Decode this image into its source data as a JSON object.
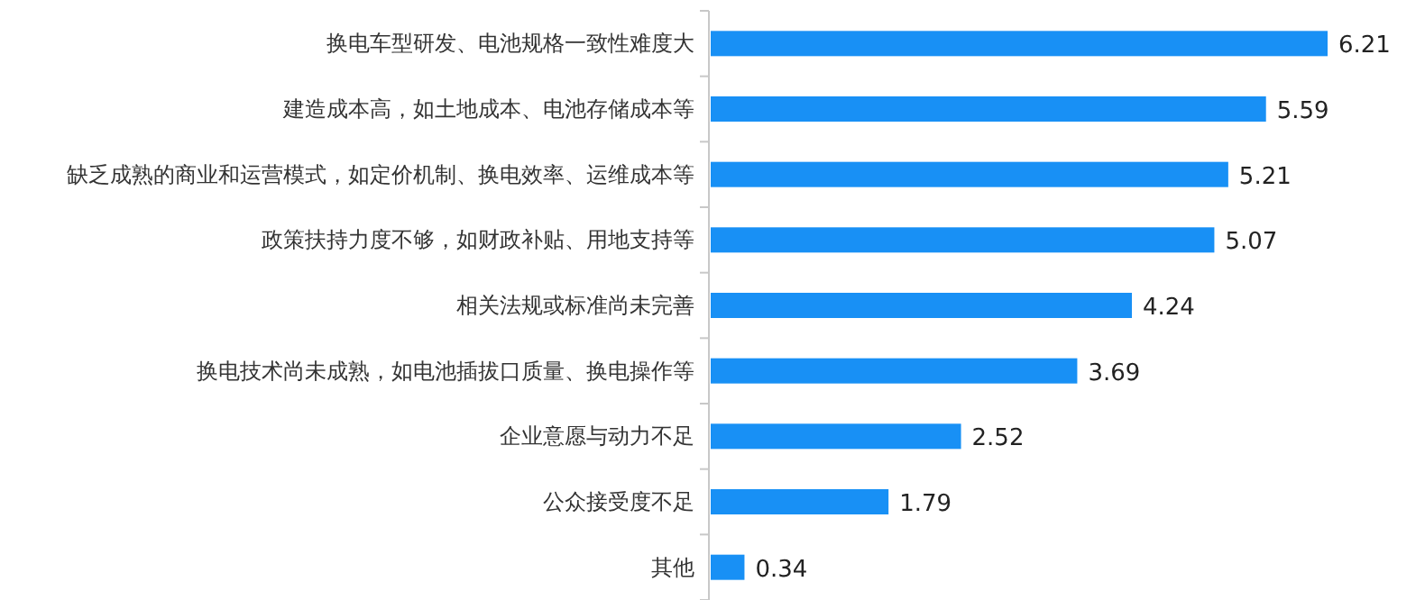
{
  "chart_data": {
    "type": "bar",
    "orientation": "horizontal",
    "data_labels": true,
    "color": "#1890f5",
    "categories": [
      "换电车型研发、电池规格一致性难度大",
      "建造成本高，如土地成本、电池存储成本等",
      "缺乏成熟的商业和运营模式，如定价机制、换电效率、运维成本等",
      "政策扶持力度不够，如财政补贴、用地支持等",
      "相关法规或标准尚未完善",
      "换电技术尚未成熟，如电池插拔口质量、换电操作等",
      "企业意愿与动力不足",
      "公众接受度不足",
      "其他"
    ],
    "values": [
      6.21,
      5.59,
      5.21,
      5.07,
      4.24,
      3.69,
      2.52,
      1.79,
      0.34
    ]
  }
}
